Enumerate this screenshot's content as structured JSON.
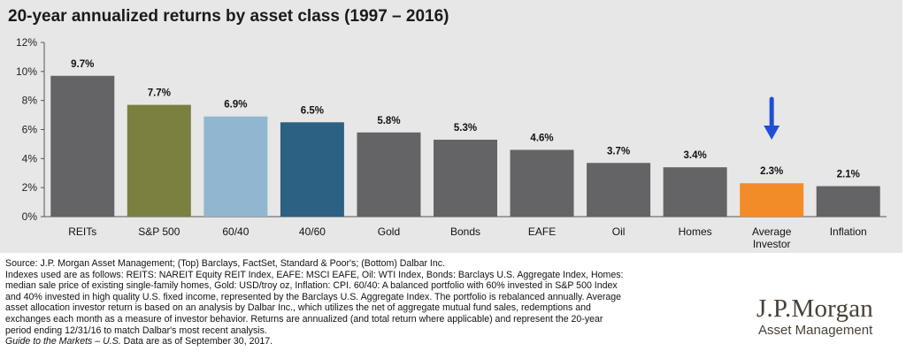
{
  "title": "20-year annualized returns by asset class (1997 – 2016)",
  "chart_data": {
    "type": "bar",
    "title": "20-year annualized returns by asset class (1997 – 2016)",
    "categories": [
      "REITs",
      "S&P 500",
      "60/40",
      "40/60",
      "Gold",
      "Bonds",
      "EAFE",
      "Oil",
      "Homes",
      "Average Investor",
      "Inflation"
    ],
    "category_lines": [
      [
        "REITs"
      ],
      [
        "S&P 500"
      ],
      [
        "60/40"
      ],
      [
        "40/60"
      ],
      [
        "Gold"
      ],
      [
        "Bonds"
      ],
      [
        "EAFE"
      ],
      [
        "Oil"
      ],
      [
        "Homes"
      ],
      [
        "Average",
        "Investor"
      ],
      [
        "Inflation"
      ]
    ],
    "values": [
      9.7,
      7.7,
      6.9,
      6.5,
      5.8,
      5.3,
      4.6,
      3.7,
      3.4,
      2.3,
      2.1
    ],
    "value_labels": [
      "9.7%",
      "7.7%",
      "6.9%",
      "6.5%",
      "5.8%",
      "5.3%",
      "4.6%",
      "3.7%",
      "3.4%",
      "2.3%",
      "2.1%"
    ],
    "colors": [
      "#646466",
      "#7b7f3f",
      "#91b7d0",
      "#2c6183",
      "#646466",
      "#646466",
      "#646466",
      "#646466",
      "#646466",
      "#f28c28",
      "#646466"
    ],
    "ylim": [
      0,
      12
    ],
    "yticks": [
      0,
      2,
      4,
      6,
      8,
      10,
      12
    ],
    "ytick_labels": [
      "0%",
      "2%",
      "4%",
      "6%",
      "8%",
      "10%",
      "12%"
    ],
    "xlabel": "",
    "ylabel": "",
    "grid": false,
    "annotation": {
      "type": "arrow",
      "points_to": "Average Investor",
      "color": "#1f4fd8"
    }
  },
  "notes": {
    "lines": [
      "Source: J.P. Morgan Asset Management; (Top) Barclays, FactSet, Standard & Poor's; (Bottom) Dalbar Inc.",
      "Indexes used are as follows: REITS: NAREIT Equity REIT Index, EAFE: MSCI EAFE, Oil: WTI Index, Bonds: Barclays U.S. Aggregate Index, Homes:",
      "median sale price of existing single-family homes, Gold: USD/troy oz, Inflation: CPI. 60/40: A balanced portfolio with 60% invested in S&P 500 Index",
      "and 40% invested in high quality U.S. fixed income, represented by the Barclays U.S. Aggregate Index. The portfolio is rebalanced annually. Average",
      "asset allocation investor return is based on an analysis by Dalbar Inc., which utilizes the net of aggregate mutual fund sales, redemptions and",
      "exchanges each month as a measure of investor behavior. Returns are annualized (and total return where applicable) and represent the 20-year",
      "period ending 12/31/16 to match Dalbar's most recent analysis."
    ],
    "guide_italic": "Guide to the Markets – U.S.",
    "guide_rest": " Data are as of September 30, 2017."
  },
  "logo": {
    "name": "J.P.Morgan",
    "subtitle": "Asset Management"
  }
}
